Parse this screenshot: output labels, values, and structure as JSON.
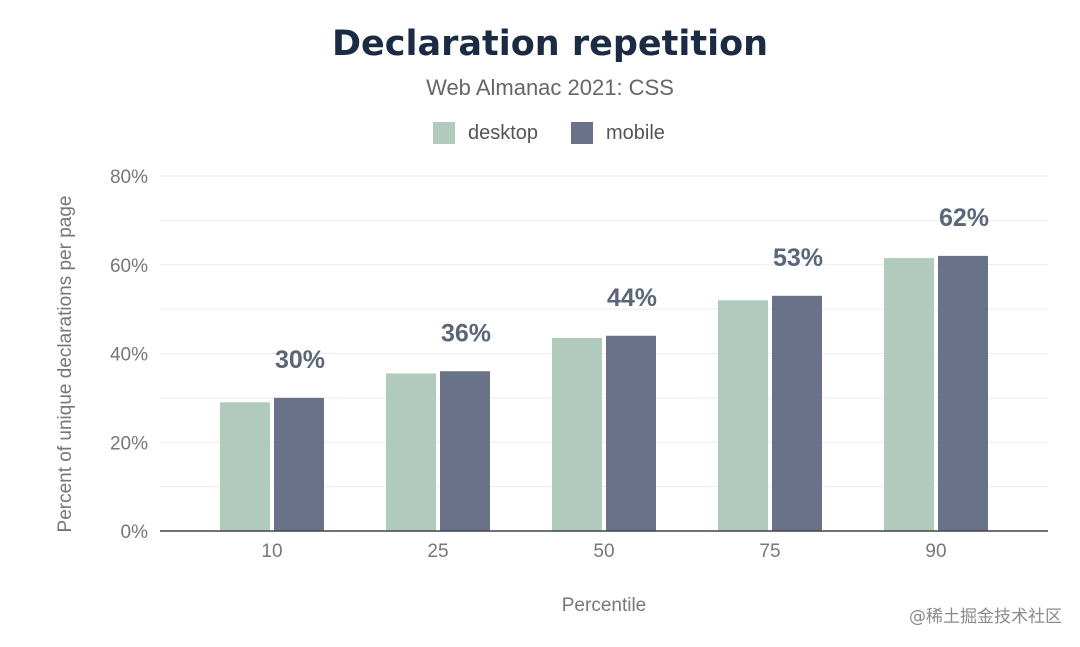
{
  "chart_data": {
    "type": "bar",
    "title": "Declaration repetition",
    "subtitle": "Web Almanac 2021: CSS",
    "xlabel": "Percentile",
    "ylabel": "Percent of unique declarations per page",
    "categories": [
      "10",
      "25",
      "50",
      "75",
      "90"
    ],
    "series": [
      {
        "name": "desktop",
        "values": [
          29,
          35.5,
          43.5,
          52,
          61.5
        ],
        "color": "#b0cbbd"
      },
      {
        "name": "mobile",
        "values": [
          30,
          36,
          44,
          53,
          62
        ],
        "color": "#697289"
      }
    ],
    "data_labels": [
      "30%",
      "36%",
      "44%",
      "53%",
      "62%"
    ],
    "ylim": [
      0,
      80
    ],
    "yticks": [
      0,
      20,
      40,
      60,
      80
    ],
    "ytick_labels": [
      "0%",
      "20%",
      "40%",
      "60%",
      "80%"
    ],
    "grid": true,
    "legend_position": "top-center"
  },
  "watermark": "@稀土掘金技术社区"
}
